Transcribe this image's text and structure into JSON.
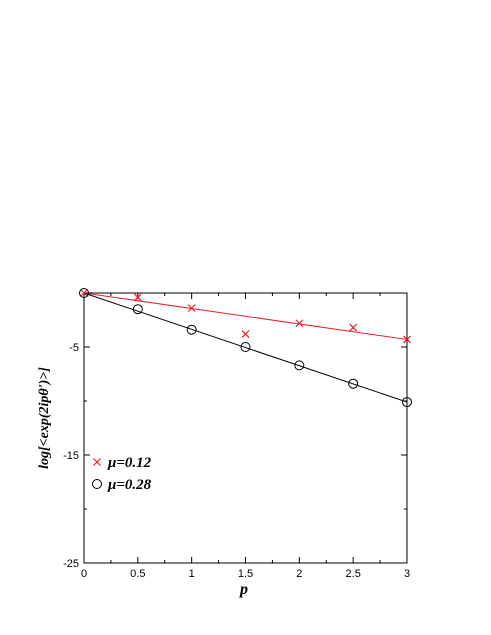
{
  "chart_data": {
    "type": "scatter",
    "xlabel": "p",
    "ylabel": "log[<exp(2ipθ')>]",
    "xlim": [
      0,
      3
    ],
    "ylim": [
      -25,
      0
    ],
    "x_ticks": [
      "0",
      "0.5",
      "1",
      "1.5",
      "2",
      "2.5",
      "3"
    ],
    "y_ticks": [
      "-5",
      "-15",
      "-25"
    ],
    "grid": false,
    "legend_position": "bottom-left",
    "series": [
      {
        "name": "μ=0.12",
        "marker": "x",
        "color": "#e8202a",
        "x": [
          0,
          0.5,
          1,
          1.5,
          2,
          2.5,
          3
        ],
        "y": [
          0,
          -0.4,
          -1.4,
          -3.8,
          -2.8,
          -3.2,
          -4.3
        ],
        "fit": {
          "x": [
            0,
            3
          ],
          "y": [
            0,
            -4.3
          ]
        }
      },
      {
        "name": "μ=0.28",
        "marker": "circle",
        "color": "#000000",
        "x": [
          0,
          0.5,
          1,
          1.5,
          2,
          2.5,
          3
        ],
        "y": [
          0,
          -1.5,
          -3.4,
          -5.0,
          -6.7,
          -8.4,
          -10.1
        ],
        "fit": {
          "x": [
            0,
            3
          ],
          "y": [
            0,
            -10.1
          ]
        }
      }
    ]
  }
}
